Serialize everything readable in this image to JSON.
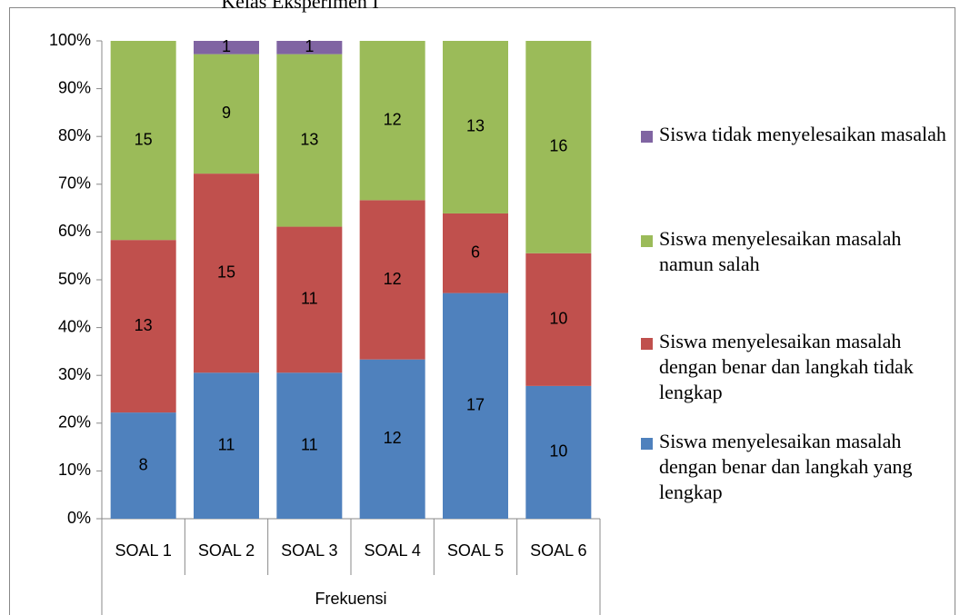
{
  "chart_data": {
    "type": "bar",
    "stacking": "percent",
    "title": "Kelas Eksperimen I",
    "categories": [
      "SOAL 1",
      "SOAL 2",
      "SOAL 3",
      "SOAL 4",
      "SOAL 5",
      "SOAL 6"
    ],
    "group_label": "Frekuensi",
    "series": [
      {
        "name": "Siswa menyelesaikan masalah dengan benar dan langkah yang lengkap",
        "color": "#4f81bd",
        "values": [
          8,
          11,
          11,
          12,
          17,
          10
        ]
      },
      {
        "name": "Siswa menyelesaikan masalah dengan benar dan langkah tidak lengkap",
        "color": "#c0504d",
        "values": [
          13,
          15,
          11,
          12,
          6,
          10
        ]
      },
      {
        "name": "Siswa menyelesaikan masalah namun salah",
        "color": "#9bbb59",
        "values": [
          15,
          9,
          13,
          12,
          13,
          16
        ]
      },
      {
        "name": "Siswa tidak menyelesaikan masalah",
        "color": "#8064a2",
        "values": [
          0,
          1,
          1,
          0,
          0,
          0
        ]
      }
    ],
    "ylim": [
      0,
      100
    ],
    "yticks": [
      {
        "value": 0,
        "label": "0%"
      },
      {
        "value": 10,
        "label": "10%"
      },
      {
        "value": 20,
        "label": "20%"
      },
      {
        "value": 30,
        "label": "30%"
      },
      {
        "value": 40,
        "label": "40%"
      },
      {
        "value": 50,
        "label": "50%"
      },
      {
        "value": 60,
        "label": "60%"
      },
      {
        "value": 70,
        "label": "70%"
      },
      {
        "value": 80,
        "label": "80%"
      },
      {
        "value": 90,
        "label": "90%"
      },
      {
        "value": 100,
        "label": "100%"
      }
    ],
    "grid": false,
    "legend": "right"
  }
}
